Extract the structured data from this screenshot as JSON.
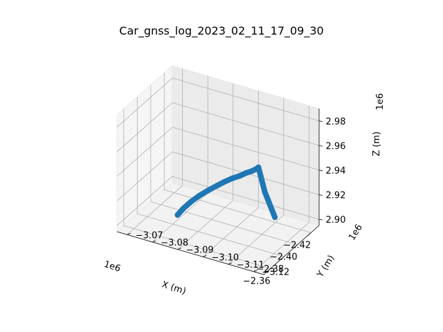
{
  "chart_data": {
    "type": "scatter",
    "projection": "3d",
    "title": "Car_gnss_log_2023_02_11_17_09_30",
    "grid": true,
    "series_color": "#1f77b4",
    "pane_color": "#f2f2f2",
    "x_axis": {
      "label": "X (m)",
      "offset_text": "1e6",
      "ticks": [
        -2420000,
        -2400000,
        -2380000,
        -2360000
      ],
      "tick_labels": [
        "−2.42",
        "−2.40",
        "−2.38",
        "−2.36"
      ],
      "range": [
        -2432000,
        -2350000
      ]
    },
    "y_axis": {
      "label": "Y (m)",
      "offset_text": "1e6",
      "ticks": [
        -3070000,
        -3080000,
        -3090000,
        -3100000,
        -3110000,
        -3120000
      ],
      "tick_labels": [
        "−3.07",
        "−3.08",
        "−3.09",
        "−3.10",
        "−3.11",
        "−3.12"
      ],
      "range": [
        -3124000,
        -3066000
      ]
    },
    "z_axis": {
      "label": "Z (m)",
      "offset_text": "1e6",
      "ticks": [
        2900000,
        2920000,
        2940000,
        2960000,
        2980000
      ],
      "tick_labels": [
        "2.90",
        "2.92",
        "2.94",
        "2.96",
        "2.98"
      ],
      "range": [
        2895000,
        2990000
      ]
    },
    "series": [
      {
        "points": [
          {
            "x": -2389000,
            "y": -3118000,
            "z": 2919000
          },
          {
            "x": -2391500,
            "y": -3116000,
            "z": 2923500
          },
          {
            "x": -2394000,
            "y": -3114000,
            "z": 2928000
          },
          {
            "x": -2396500,
            "y": -3112000,
            "z": 2932500
          },
          {
            "x": -2399000,
            "y": -3110500,
            "z": 2937000
          },
          {
            "x": -2401500,
            "y": -3109000,
            "z": 2941500
          },
          {
            "x": -2404000,
            "y": -3107500,
            "z": 2946000
          },
          {
            "x": -2403000,
            "y": -3107000,
            "z": 2945000
          },
          {
            "x": -2400000,
            "y": -3106000,
            "z": 2944000
          },
          {
            "x": -2397000,
            "y": -3104500,
            "z": 2943000
          },
          {
            "x": -2393500,
            "y": -3103000,
            "z": 2941500
          },
          {
            "x": -2390000,
            "y": -3101000,
            "z": 2940000
          },
          {
            "x": -2386000,
            "y": -3099000,
            "z": 2938000
          },
          {
            "x": -2382000,
            "y": -3097000,
            "z": 2935500
          },
          {
            "x": -2378000,
            "y": -3094500,
            "z": 2932000
          },
          {
            "x": -2374500,
            "y": -3092000,
            "z": 2928000
          },
          {
            "x": -2371500,
            "y": -3089500,
            "z": 2923000
          },
          {
            "x": -2369500,
            "y": -3087000,
            "z": 2917000
          },
          {
            "x": -2368500,
            "y": -3085000,
            "z": 2911000
          }
        ]
      }
    ]
  }
}
